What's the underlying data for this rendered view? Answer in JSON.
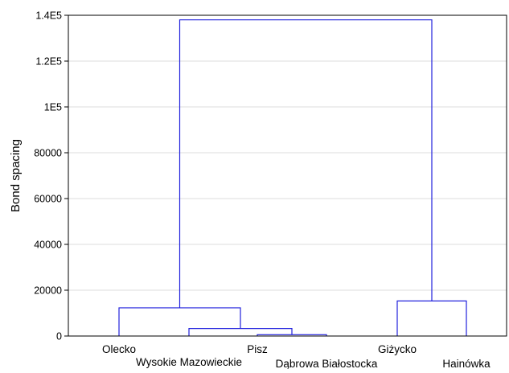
{
  "chart_data": {
    "type": "dendrogram",
    "ylabel": "Bond spacing",
    "ylim": [
      0,
      140000
    ],
    "y_ticks": [
      {
        "value": 0,
        "label": "0"
      },
      {
        "value": 20000,
        "label": "20000"
      },
      {
        "value": 40000,
        "label": "40000"
      },
      {
        "value": 60000,
        "label": "60000"
      },
      {
        "value": 80000,
        "label": "80000"
      },
      {
        "value": 100000,
        "label": "1E5"
      },
      {
        "value": 120000,
        "label": "1.2E5"
      },
      {
        "value": 140000,
        "label": "1.4E5"
      }
    ],
    "grid": true,
    "leaves": [
      "Olecko",
      "Wysokie Mazowieckie",
      "Pisz",
      "Dąbrowa Białostocka",
      "Giżycko",
      "Hainówka"
    ],
    "merges": [
      {
        "left": 3,
        "right": 4,
        "height": 600
      },
      {
        "left": 2,
        "right": 7,
        "height": 3300
      },
      {
        "left": 1,
        "right": 8,
        "height": 12300
      },
      {
        "left": 5,
        "right": 6,
        "height": 15300
      },
      {
        "left": 9,
        "right": 10,
        "height": 138000
      }
    ],
    "line_color": "#2222dd",
    "grid_color": "#dcdcdc"
  }
}
